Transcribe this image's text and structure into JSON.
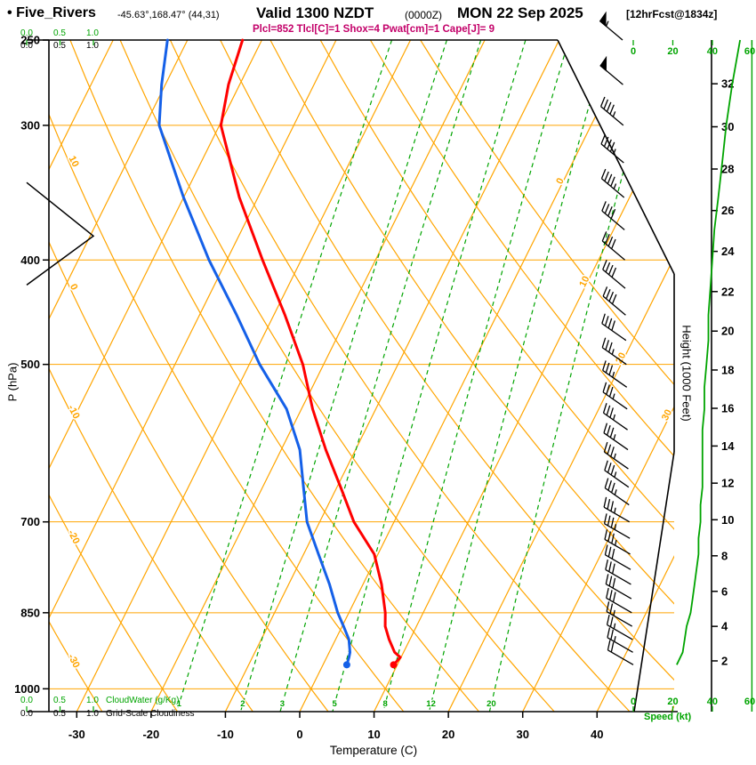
{
  "header": {
    "bullet": "•",
    "station": "Five_Rivers",
    "coords": "-45.63°,168.47° (44,31)",
    "valid_label": "Valid 1300 NZDT",
    "valid_utc": "(0000Z)",
    "valid_date": "MON 22 Sep 2025",
    "fcst_tag": "[12hrFcst@1834z]",
    "indices": "Plcl=852 Tlcl[C]=1 Shox=4 Pwat[cm]=1 Cape[J]= 9"
  },
  "axes": {
    "pressure_title": "P (hPa)",
    "pressure_ticks": [
      250,
      300,
      400,
      500,
      700,
      850,
      1000
    ],
    "temperature_title": "Temperature (C)",
    "temperature_ticks": [
      -30,
      -20,
      -10,
      0,
      10,
      20,
      30,
      40
    ],
    "height_title": "Height (1000 Feet)",
    "height_ticks_kft": [
      2,
      4,
      6,
      8,
      10,
      12,
      14,
      16,
      18,
      20,
      22,
      24,
      26,
      28,
      30,
      32
    ],
    "speed_title": "Speed (kt)",
    "speed_ticks_kt": [
      0,
      20,
      40,
      60
    ],
    "cloud_scale_ticks": [
      "0.0",
      "0.5",
      "1.0"
    ],
    "cloudwater_title": "CloudWater (g/Kg)",
    "cloudiness_title": "Grid-Scale Cloudiness"
  },
  "chart_data": {
    "type": "line",
    "subtype": "skew-t-log-p-sounding",
    "title": "Five_Rivers sounding, valid 1300 NZDT (0000Z) MON 22 Sep 2025, 12 hr forecast",
    "pressure_range_hPa": [
      250,
      1050
    ],
    "temp_axis_range_C": [
      -30,
      40
    ],
    "isotherm_step_C": 10,
    "isotherm_labels_right_C": [
      0,
      10,
      20,
      30
    ],
    "dry_adiabat_labels_C": [
      10,
      0,
      -10,
      -20,
      -30
    ],
    "mixing_ratio_lines_g_kg": [
      1,
      2,
      3,
      5,
      8,
      12,
      20
    ],
    "temperature_profile": {
      "pressure_hPa": [
        950,
        935,
        925,
        900,
        875,
        850,
        800,
        750,
        700,
        650,
        600,
        550,
        500,
        450,
        400,
        350,
        300,
        275,
        250
      ],
      "temp_C": [
        9.5,
        9.9,
        8.8,
        7.2,
        5.8,
        4.9,
        2.5,
        -0.5,
        -5.4,
        -9.5,
        -14.0,
        -18.5,
        -22.8,
        -28.5,
        -35.2,
        -42.5,
        -49.8,
        -51.5,
        -52.6
      ]
    },
    "dewpoint_profile": {
      "pressure_hPa": [
        950,
        935,
        925,
        900,
        875,
        850,
        800,
        750,
        700,
        650,
        600,
        550,
        500,
        450,
        400,
        350,
        300,
        275,
        250
      ],
      "temp_C": [
        3.2,
        3.0,
        2.8,
        1.8,
        0.2,
        -1.5,
        -4.5,
        -8.0,
        -11.7,
        -14.5,
        -17.5,
        -22.0,
        -28.6,
        -35.0,
        -42.4,
        -50.0,
        -58.1,
        -60.5,
        -62.7
      ]
    },
    "wind_profile": {
      "pressure_hPa": [
        950,
        925,
        900,
        875,
        850,
        825,
        800,
        775,
        750,
        725,
        700,
        675,
        650,
        625,
        600,
        575,
        550,
        525,
        500,
        475,
        450,
        425,
        400,
        375,
        350,
        325,
        300,
        275,
        250
      ],
      "speed_kt": [
        22,
        25,
        26,
        27,
        29,
        30,
        31,
        32,
        33,
        33,
        34,
        34,
        35,
        35,
        35,
        35,
        36,
        36,
        37,
        38,
        38,
        39,
        40,
        41,
        43,
        45,
        47,
        50,
        54
      ],
      "direction_deg": [
        300,
        300,
        300,
        300,
        300,
        300,
        300,
        300,
        300,
        300,
        300,
        305,
        305,
        305,
        305,
        305,
        305,
        305,
        305,
        305,
        310,
        310,
        310,
        310,
        310,
        310,
        310,
        310,
        310
      ]
    },
    "grid_scale_cloudiness_profile": {
      "pressure_hPa": [
        339,
        380,
        422
      ],
      "fraction": [
        0.0,
        1.0,
        0.0
      ]
    },
    "colors": {
      "grid_orange": "#FFA500",
      "green": "#00A400",
      "temperature_red": "#FF0000",
      "dewpoint_blue": "#1560E8",
      "indices_magenta": "#C30069",
      "barb_black": "#000000"
    }
  }
}
